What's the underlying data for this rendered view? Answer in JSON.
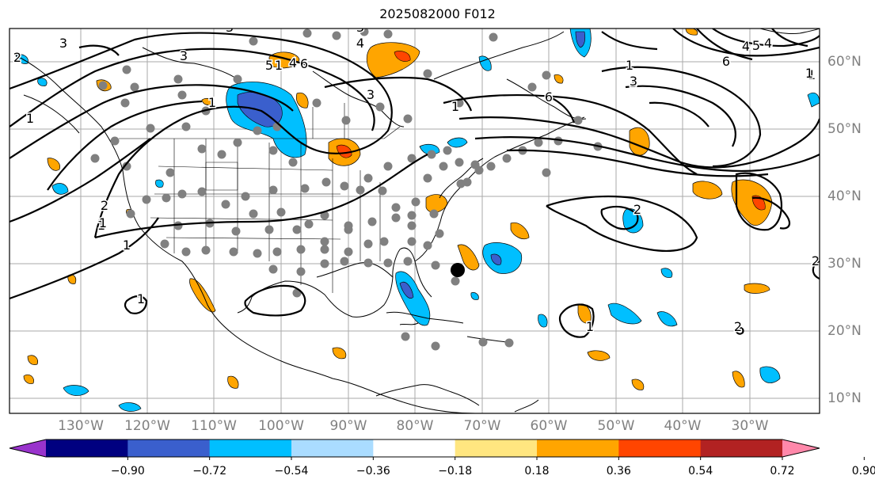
{
  "title": "2025082000 F012",
  "map": {
    "lon_labels": [
      "130°W",
      "120°W",
      "110°W",
      "100°W",
      "90°W",
      "80°W",
      "70°W",
      "60°W",
      "50°W",
      "40°W",
      "30°W"
    ],
    "lat_labels": [
      "60°N",
      "50°N",
      "40°N",
      "30°N",
      "20°N",
      "10°N"
    ],
    "contour_labels": [
      "3",
      "3",
      "3",
      "4",
      "3",
      "5",
      "4",
      "6",
      "1",
      "3",
      "2",
      "1",
      "1",
      "3",
      "6",
      "1",
      "2",
      "1",
      "1",
      "1",
      "2",
      "4",
      "1",
      "2",
      "2",
      "3",
      "4",
      "5",
      "6",
      "1",
      "1",
      "1",
      "1"
    ],
    "grid": true,
    "station_marker_color": "#808080",
    "storm_marker_color": "#000000"
  },
  "colorbar": {
    "ticks": [
      "−0.90",
      "−0.72",
      "−0.54",
      "−0.36",
      "−0.18",
      "0.18",
      "0.36",
      "0.54",
      "0.72",
      "0.90"
    ],
    "colors": [
      "#9933cc",
      "#000080",
      "#3a5fcd",
      "#00bfff",
      "#aadcff",
      "#ffffff",
      "#ffe680",
      "#ffa500",
      "#ff4500",
      "#b22222",
      "#ff88aa"
    ],
    "extend": "both"
  }
}
